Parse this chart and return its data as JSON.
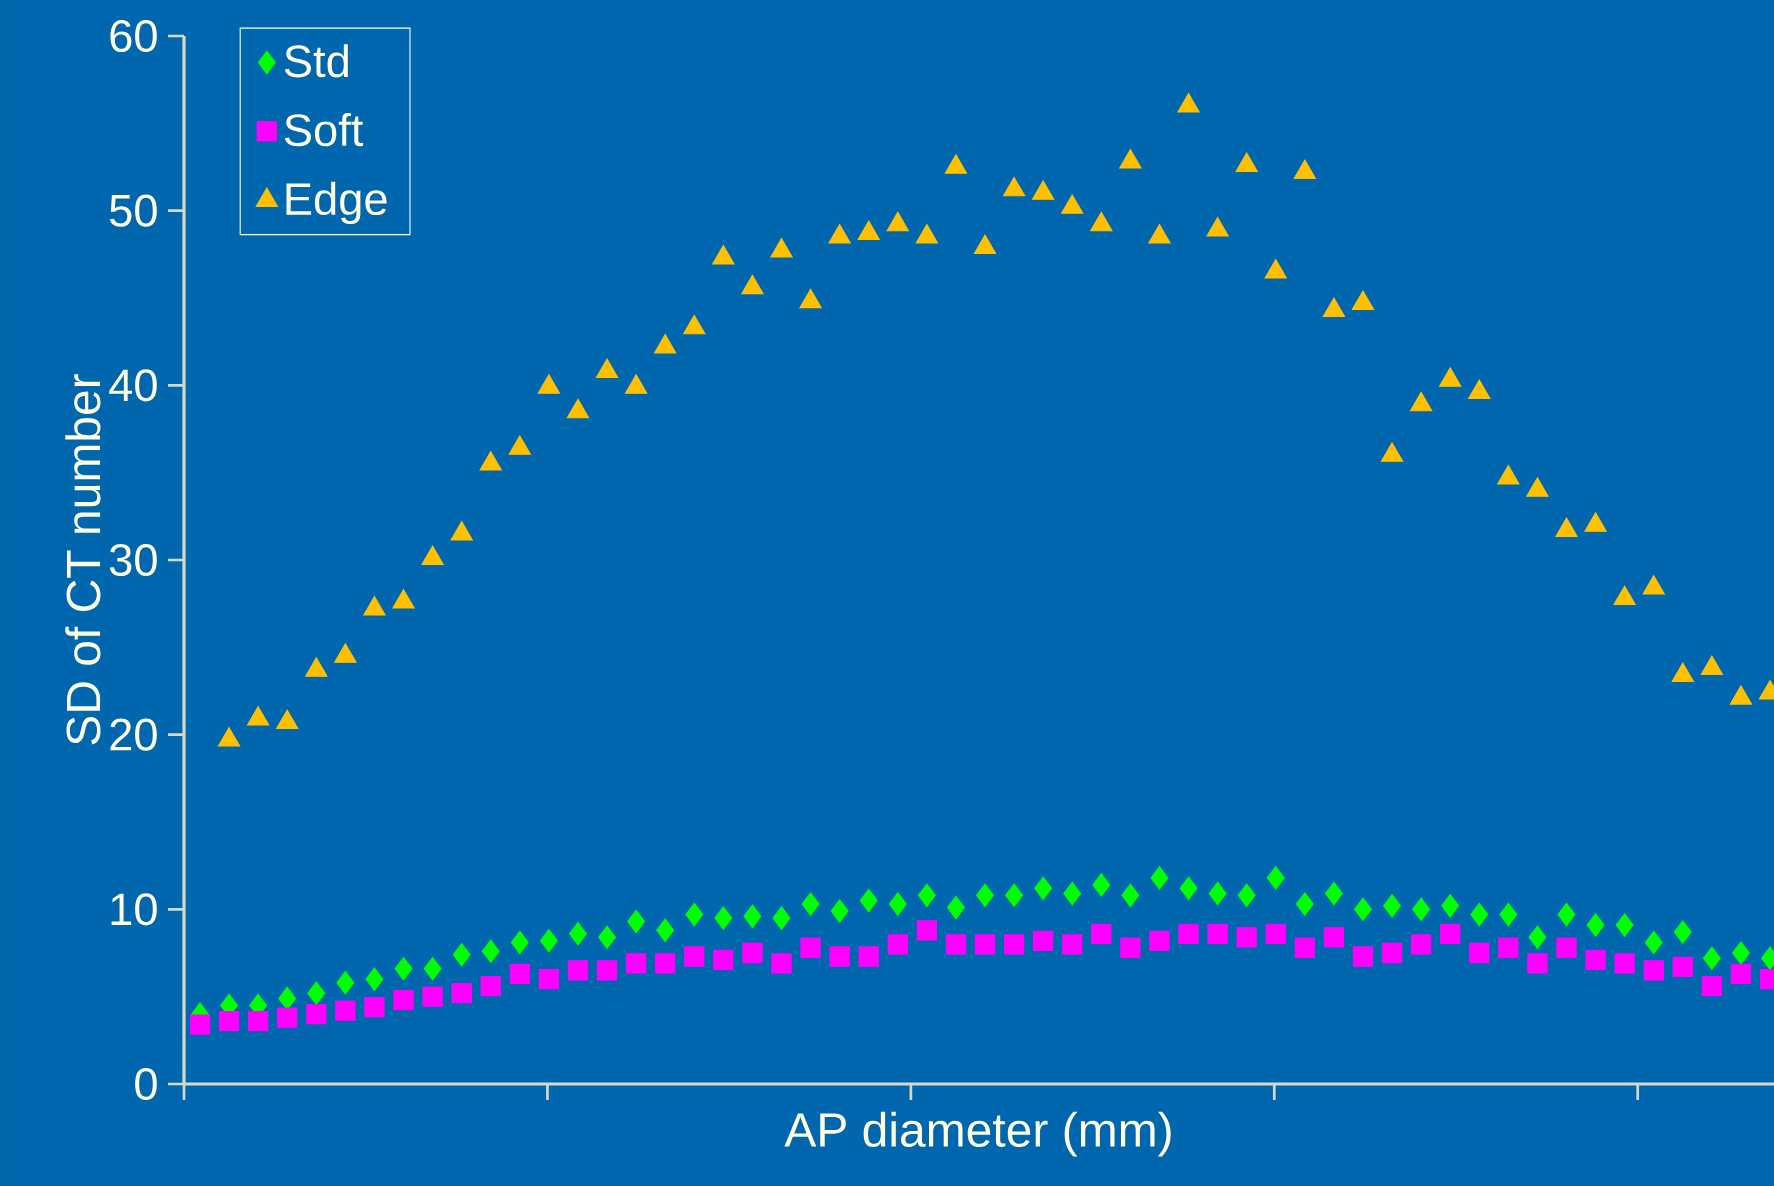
{
  "chart_data": {
    "type": "scatter",
    "xlabel": "AP diameter (mm)",
    "ylabel": "SD of CT number",
    "categories": [
      null,
      null,
      null,
      null,
      null,
      null,
      null,
      null,
      null,
      null,
      null,
      null,
      null,
      null,
      null,
      null,
      null,
      null,
      null,
      null,
      null,
      null,
      null,
      null,
      null,
      null,
      null,
      null,
      null,
      null,
      null,
      null,
      null,
      null,
      null,
      null,
      null,
      null,
      null,
      null,
      null,
      null,
      null,
      null,
      null,
      null,
      null,
      null,
      null,
      null,
      null,
      null,
      null,
      null,
      null
    ],
    "series": [
      {
        "name": "Std",
        "color": "#00ff00",
        "marker": "diamond",
        "values": [
          4.0,
          4.5,
          4.5,
          4.9,
          5.2,
          5.8,
          6.0,
          6.6,
          6.6,
          7.4,
          7.6,
          8.1,
          8.2,
          8.6,
          8.4,
          9.3,
          8.8,
          9.7,
          9.5,
          9.6,
          9.5,
          10.3,
          9.9,
          10.5,
          10.3,
          10.8,
          10.1,
          10.8,
          10.8,
          11.2,
          10.9,
          11.4,
          10.8,
          11.8,
          11.2,
          10.9,
          10.8,
          11.8,
          10.3,
          10.9,
          10.0,
          10.2,
          10.0,
          10.2,
          9.7,
          9.7,
          8.4,
          9.7,
          9.1,
          9.1,
          8.1,
          8.7,
          7.2,
          7.5,
          7.2
        ]
      },
      {
        "name": "Soft",
        "color": "#ff00ff",
        "marker": "square",
        "values": [
          3.4,
          3.6,
          3.6,
          3.8,
          4.0,
          4.2,
          4.4,
          4.8,
          5.0,
          5.2,
          5.6,
          6.3,
          6.0,
          6.5,
          6.5,
          6.9,
          6.9,
          7.3,
          7.1,
          7.5,
          6.9,
          7.8,
          7.3,
          7.3,
          8.0,
          8.8,
          8.0,
          8.0,
          8.0,
          8.2,
          8.0,
          8.6,
          7.8,
          8.2,
          8.6,
          8.6,
          8.4,
          8.6,
          7.8,
          8.4,
          7.3,
          7.5,
          8.0,
          8.6,
          7.5,
          7.8,
          6.9,
          7.8,
          7.1,
          6.9,
          6.5,
          6.7,
          5.6,
          6.3,
          6.0
        ]
      },
      {
        "name": "Edge",
        "color": "#ffc000",
        "marker": "triangle",
        "values": [
          null,
          19.7,
          20.9,
          20.7,
          23.7,
          24.5,
          27.2,
          27.6,
          30.1,
          31.5,
          35.5,
          36.4,
          39.9,
          38.5,
          40.8,
          39.9,
          42.2,
          43.3,
          47.3,
          45.6,
          47.7,
          44.8,
          48.5,
          48.7,
          49.2,
          48.5,
          52.5,
          47.9,
          51.2,
          51.0,
          50.2,
          49.2,
          52.8,
          48.5,
          56.0,
          48.9,
          52.6,
          46.5,
          52.2,
          44.3,
          44.7,
          36.0,
          38.9,
          40.3,
          39.6,
          34.7,
          34.0,
          31.7,
          32.0,
          27.8,
          28.4,
          23.4,
          23.8,
          22.1,
          22.4
        ]
      }
    ],
    "ylim": [
      0,
      60
    ],
    "yticks": [
      0,
      10,
      20,
      30,
      40,
      50,
      60
    ],
    "tick_labels": "y",
    "grid": false,
    "legend": "top left"
  }
}
